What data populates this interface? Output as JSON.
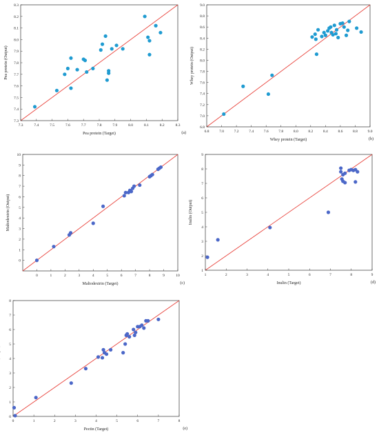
{
  "chart_data": [
    {
      "type": "scatter",
      "panel_label": "(a)",
      "xlabel": "Pea protein (Target)",
      "ylabel": "Pea protein (Output)",
      "xlim": [
        7.3,
        8.3
      ],
      "ylim": [
        7.3,
        8.3
      ],
      "xticks": [
        "7.3",
        "7.4",
        "7.5",
        "7.6",
        "7.7",
        "7.8",
        "7.9",
        "8.0",
        "8.1",
        "8.2",
        "8.3"
      ],
      "yticks": [
        "7.3",
        "7.4",
        "7.5",
        "7.6",
        "7.7",
        "7.8",
        "7.9",
        "8.0",
        "8.1",
        "8.2",
        "8.3"
      ],
      "grid": false,
      "reference_line": "y = x",
      "point_color": "#1f9bd1",
      "line_color": "#e8413a",
      "x": [
        7.39,
        7.53,
        7.58,
        7.6,
        7.62,
        7.62,
        7.66,
        7.7,
        7.71,
        7.72,
        7.76,
        7.81,
        7.82,
        7.84,
        7.85,
        7.86,
        7.86,
        7.88,
        7.91,
        7.95,
        8.09,
        8.11,
        8.12,
        8.12,
        8.16,
        8.19
      ],
      "y": [
        7.42,
        7.56,
        7.7,
        7.75,
        7.58,
        7.84,
        7.74,
        7.83,
        7.82,
        7.72,
        7.75,
        7.91,
        7.96,
        8.03,
        7.65,
        7.71,
        7.73,
        7.92,
        7.95,
        7.92,
        8.2,
        8.02,
        7.99,
        7.87,
        8.12,
        8.06
      ]
    },
    {
      "type": "scatter",
      "panel_label": "(b)",
      "xlabel": "Whey protein (Target)",
      "ylabel": "Whey protein (Output)",
      "xlim": [
        6.8,
        9.0
      ],
      "ylim": [
        6.8,
        9.0
      ],
      "xticks": [
        "6.8",
        "7.0",
        "7.2",
        "7.4",
        "7.6",
        "7.8",
        "8.0",
        "8.2",
        "8.4",
        "8.6",
        "8.8",
        "9.0"
      ],
      "yticks": [
        "6.8",
        "7.0",
        "7.2",
        "7.4",
        "7.6",
        "7.8",
        "8.0",
        "8.2",
        "8.4",
        "8.6",
        "8.8",
        "9.0"
      ],
      "grid": false,
      "reference_line": "y = x",
      "point_color": "#1f9bd1",
      "line_color": "#e8413a",
      "x": [
        7.03,
        7.29,
        7.63,
        7.68,
        8.22,
        8.26,
        8.27,
        8.28,
        8.3,
        8.35,
        8.38,
        8.4,
        8.43,
        8.45,
        8.47,
        8.48,
        8.5,
        8.52,
        8.54,
        8.55,
        8.57,
        8.6,
        8.63,
        8.65,
        8.68,
        8.7,
        8.72,
        8.82,
        8.88
      ],
      "y": [
        7.03,
        7.53,
        7.39,
        7.73,
        8.42,
        8.47,
        8.38,
        8.11,
        8.55,
        8.43,
        8.5,
        8.45,
        8.53,
        8.58,
        8.6,
        8.5,
        8.46,
        8.63,
        8.48,
        8.55,
        8.41,
        8.66,
        8.67,
        8.6,
        8.45,
        8.54,
        8.7,
        8.58,
        8.51
      ]
    },
    {
      "type": "scatter",
      "panel_label": "(c)",
      "xlabel": "Maltodextrin (Target)",
      "ylabel": "Maltodextrin (Output)",
      "xlim": [
        -1,
        10
      ],
      "ylim": [
        -1,
        10
      ],
      "xticks": [
        "0",
        "1",
        "2",
        "3",
        "4",
        "5",
        "6",
        "7",
        "8",
        "9",
        "10"
      ],
      "yticks": [
        "0",
        "1",
        "2",
        "3",
        "4",
        "5",
        "6",
        "7",
        "8",
        "9",
        "10"
      ],
      "grid": false,
      "reference_line": "y = x",
      "point_color": "#4b67c8",
      "line_color": "#e8413a",
      "x": [
        0.0,
        1.2,
        2.3,
        2.4,
        4.0,
        4.7,
        6.2,
        6.3,
        6.5,
        6.6,
        6.7,
        6.8,
        6.9,
        7.3,
        8.0,
        8.1,
        8.2,
        8.6,
        8.7,
        8.8
      ],
      "y": [
        0.0,
        1.3,
        2.4,
        2.6,
        3.5,
        5.1,
        6.1,
        6.4,
        6.4,
        6.6,
        6.5,
        6.8,
        7.0,
        7.1,
        7.9,
        8.0,
        8.1,
        8.6,
        8.7,
        8.8
      ]
    },
    {
      "type": "scatter",
      "panel_label": "(d)",
      "xlabel": "Inulin (Target)",
      "ylabel": "Inulin (Output)",
      "xlim": [
        1,
        9
      ],
      "ylim": [
        1,
        9
      ],
      "xticks": [
        "1",
        "2",
        "3",
        "4",
        "5",
        "6",
        "7",
        "8",
        "9"
      ],
      "yticks": [
        "1",
        "2",
        "3",
        "4",
        "5",
        "6",
        "7",
        "8",
        "9"
      ],
      "grid": false,
      "reference_line": "y = x",
      "point_color": "#4b67c8",
      "line_color": "#e8413a",
      "x": [
        1.1,
        1.6,
        4.1,
        6.9,
        7.5,
        7.5,
        7.55,
        7.6,
        7.6,
        7.7,
        7.7,
        7.9,
        8.0,
        8.1,
        8.2,
        8.2,
        8.3
      ],
      "y": [
        1.9,
        3.1,
        3.95,
        5.0,
        8.05,
        7.8,
        7.3,
        7.6,
        7.15,
        7.7,
        7.05,
        7.9,
        7.95,
        7.9,
        7.95,
        7.1,
        7.8
      ]
    },
    {
      "type": "scatter",
      "panel_label": "(e)",
      "xlabel": "Pectin (Target)",
      "ylabel": "Pectin (Output)",
      "xlim": [
        0,
        8
      ],
      "ylim": [
        0,
        8
      ],
      "xticks": [
        "0",
        "1",
        "2",
        "3",
        "4",
        "5",
        "6",
        "7",
        "8"
      ],
      "yticks": [
        "0",
        "1",
        "2",
        "3",
        "4",
        "5",
        "6",
        "7",
        "8"
      ],
      "grid": false,
      "reference_line": "y = x",
      "point_color": "#4b67c8",
      "line_color": "#e8413a",
      "x": [
        0.05,
        0.1,
        1.1,
        2.8,
        3.5,
        4.1,
        4.3,
        4.35,
        4.5,
        4.4,
        4.7,
        5.3,
        5.4,
        5.5,
        5.45,
        5.6,
        5.8,
        5.9,
        5.85,
        6.0,
        6.1,
        6.2,
        6.3,
        6.4,
        6.5,
        7.0
      ],
      "y": [
        0.6,
        0.05,
        1.3,
        2.3,
        3.3,
        4.1,
        4.05,
        4.6,
        4.3,
        4.4,
        4.6,
        4.4,
        5.0,
        5.7,
        5.6,
        5.5,
        6.0,
        5.8,
        5.6,
        6.2,
        6.2,
        6.3,
        6.1,
        6.6,
        6.6,
        6.7
      ]
    }
  ]
}
